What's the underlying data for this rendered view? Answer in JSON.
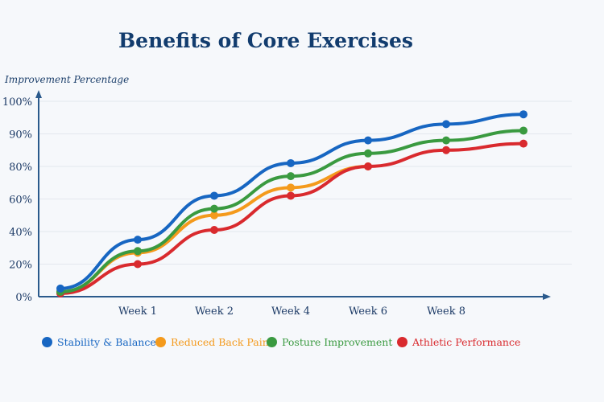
{
  "chart_data": {
    "type": "line",
    "title": "Benefits of Core Exercises",
    "ylabel": "Improvement Percentage",
    "xlabel": "",
    "categories": [
      "",
      "Week 1",
      "Week 2",
      "Week 4",
      "Week 6",
      "Week 8",
      ""
    ],
    "y_ticks": [
      {
        "label": "0%",
        "value": 0
      },
      {
        "label": "20%",
        "value": 20
      },
      {
        "label": "40%",
        "value": 40
      },
      {
        "label": "60%",
        "value": 60
      },
      {
        "label": "80%",
        "value": 80
      },
      {
        "label": "90%",
        "value": 90
      },
      {
        "label": "100%",
        "value": 100
      }
    ],
    "grid": true,
    "legend_position": "bottom",
    "series": [
      {
        "name": "Stability & Balance",
        "color": "#1766c2",
        "values": [
          5,
          35,
          62,
          81,
          88,
          93,
          96
        ]
      },
      {
        "name": "Reduced Back Pain",
        "color": "#f49a1c",
        "values": [
          3,
          27,
          50,
          67,
          80,
          null,
          null
        ]
      },
      {
        "name": "Posture Improvement",
        "color": "#3a9a40",
        "values": [
          3,
          28,
          54,
          74,
          84,
          88,
          91
        ]
      },
      {
        "name": "Athletic Performance",
        "color": "#d92a2e",
        "values": [
          2,
          20,
          41,
          62,
          80,
          85,
          87
        ]
      }
    ]
  }
}
